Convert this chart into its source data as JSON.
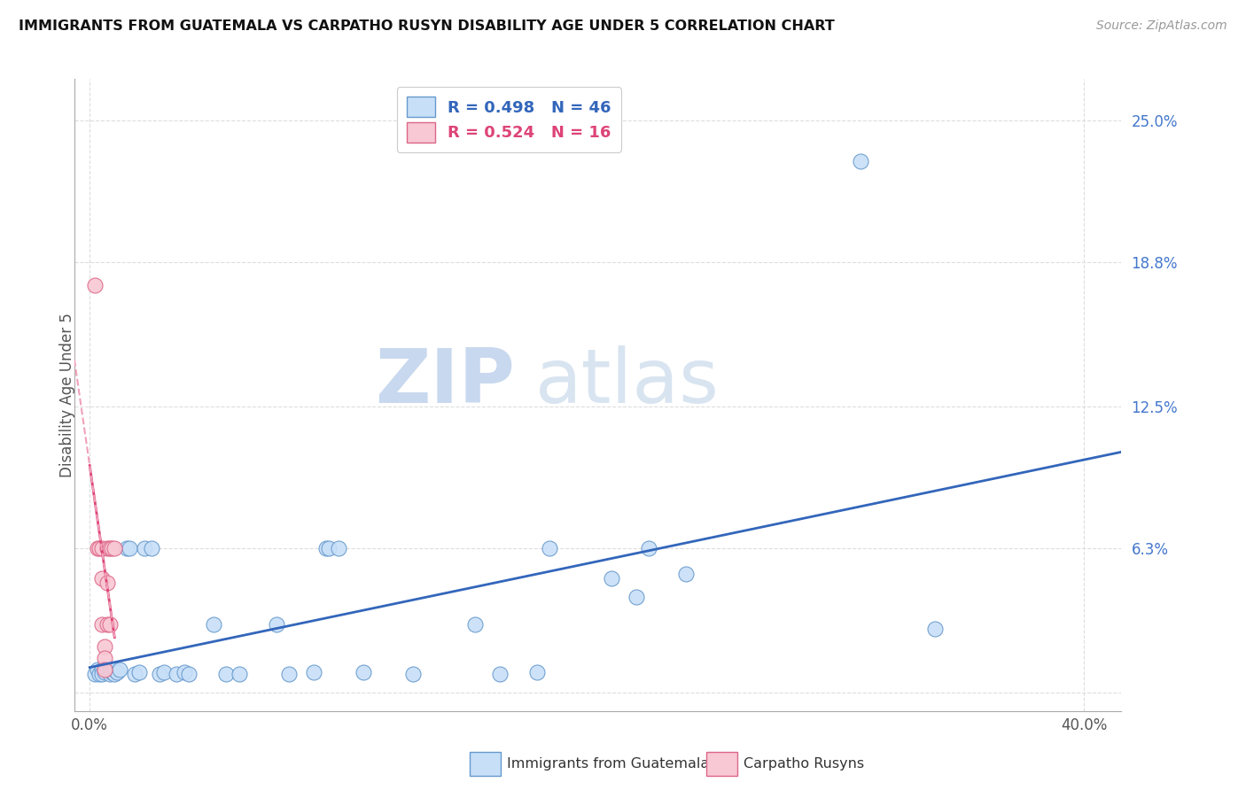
{
  "title": "IMMIGRANTS FROM GUATEMALA VS CARPATHO RUSYN DISABILITY AGE UNDER 5 CORRELATION CHART",
  "source": "Source: ZipAtlas.com",
  "ylabel_label": "Disability Age Under 5",
  "ytick_values": [
    0.0,
    0.063,
    0.125,
    0.188,
    0.25
  ],
  "ytick_labels": [
    "",
    "6.3%",
    "12.5%",
    "18.8%",
    "25.0%"
  ],
  "xtick_values": [
    0.0,
    0.4
  ],
  "xtick_labels": [
    "0.0%",
    "40.0%"
  ],
  "legend_r1": "R = 0.498",
  "legend_n1": "N = 46",
  "legend_r2": "R = 0.524",
  "legend_n2": "N = 16",
  "blue_scatter_fill": "#c8dff8",
  "blue_scatter_edge": "#6699cc",
  "pink_scatter_fill": "#f8c8d4",
  "pink_scatter_edge": "#dd6688",
  "line_blue": "#3366bb",
  "line_pink": "#dd4477",
  "line_pink_dash": "#f0a0b8",
  "grid_color": "#dddddd",
  "title_color": "#111111",
  "ytick_color": "#4477cc",
  "source_color": "#999999",
  "watermark_zip": "#d8e4f4",
  "watermark_atlas": "#e0e8f0",
  "guatemala_points": [
    [
      0.002,
      0.008
    ],
    [
      0.003,
      0.01
    ],
    [
      0.004,
      0.008
    ],
    [
      0.005,
      0.01
    ],
    [
      0.005,
      0.008
    ],
    [
      0.006,
      0.009
    ],
    [
      0.007,
      0.01
    ],
    [
      0.008,
      0.008
    ],
    [
      0.008,
      0.01
    ],
    [
      0.009,
      0.009
    ],
    [
      0.01,
      0.008
    ],
    [
      0.01,
      0.01
    ],
    [
      0.011,
      0.009
    ],
    [
      0.012,
      0.01
    ],
    [
      0.015,
      0.063
    ],
    [
      0.016,
      0.063
    ],
    [
      0.018,
      0.008
    ],
    [
      0.02,
      0.009
    ],
    [
      0.022,
      0.063
    ],
    [
      0.025,
      0.063
    ],
    [
      0.028,
      0.008
    ],
    [
      0.03,
      0.009
    ],
    [
      0.035,
      0.008
    ],
    [
      0.038,
      0.009
    ],
    [
      0.04,
      0.008
    ],
    [
      0.05,
      0.03
    ],
    [
      0.055,
      0.008
    ],
    [
      0.06,
      0.008
    ],
    [
      0.075,
      0.03
    ],
    [
      0.08,
      0.008
    ],
    [
      0.09,
      0.009
    ],
    [
      0.095,
      0.063
    ],
    [
      0.096,
      0.063
    ],
    [
      0.1,
      0.063
    ],
    [
      0.11,
      0.009
    ],
    [
      0.13,
      0.008
    ],
    [
      0.155,
      0.03
    ],
    [
      0.165,
      0.008
    ],
    [
      0.18,
      0.009
    ],
    [
      0.185,
      0.063
    ],
    [
      0.21,
      0.05
    ],
    [
      0.22,
      0.042
    ],
    [
      0.225,
      0.063
    ],
    [
      0.24,
      0.052
    ],
    [
      0.31,
      0.232
    ],
    [
      0.34,
      0.028
    ]
  ],
  "carpatho_points": [
    [
      0.002,
      0.178
    ],
    [
      0.003,
      0.063
    ],
    [
      0.004,
      0.063
    ],
    [
      0.005,
      0.063
    ],
    [
      0.005,
      0.05
    ],
    [
      0.005,
      0.03
    ],
    [
      0.006,
      0.02
    ],
    [
      0.006,
      0.015
    ],
    [
      0.006,
      0.01
    ],
    [
      0.007,
      0.063
    ],
    [
      0.007,
      0.048
    ],
    [
      0.007,
      0.03
    ],
    [
      0.008,
      0.063
    ],
    [
      0.008,
      0.03
    ],
    [
      0.009,
      0.063
    ],
    [
      0.01,
      0.063
    ]
  ]
}
